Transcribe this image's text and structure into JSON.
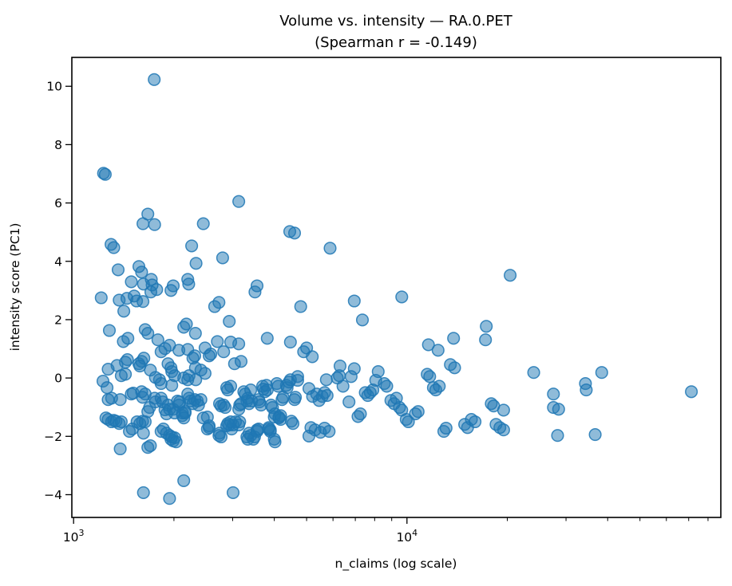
{
  "figure": {
    "title_line1": "Volume vs. intensity — RA.0.PET",
    "title_line2": "(Spearman r = -0.149)",
    "xlabel": "n_claims (log scale)",
    "ylabel": "intensity score (PC1)"
  },
  "style": {
    "marker_color": "#1f77b4",
    "marker_fill_opacity": 0.5,
    "marker_edge_opacity": 0.85,
    "spine_color": "#000000",
    "background": "#ffffff"
  },
  "chart_data": {
    "type": "scatter",
    "title": "Volume vs. intensity — RA.0.PET (Spearman r = -0.149)",
    "xlabel": "n_claims (log scale)",
    "ylabel": "intensity score (PC1)",
    "spearman_r": -0.149,
    "x_scale": "log",
    "grid": false,
    "legend": false,
    "xlim": [
      988,
      87400
    ],
    "ylim": [
      -4.78,
      10.99
    ],
    "marker_radius_px": 7.3,
    "x_major_ticks": [
      {
        "value": 1000,
        "mantissa": "10",
        "exponent": "3"
      },
      {
        "value": 10000,
        "mantissa": "10",
        "exponent": "4"
      }
    ],
    "x_minor_ticks": [
      2000,
      3000,
      4000,
      5000,
      6000,
      7000,
      8000,
      9000,
      20000,
      30000,
      40000,
      50000,
      60000,
      70000,
      80000
    ],
    "y_ticks": [
      {
        "value": -4,
        "label": "−4"
      },
      {
        "value": -2,
        "label": "−2"
      },
      {
        "value": 0,
        "label": "0"
      },
      {
        "value": 2,
        "label": "2"
      },
      {
        "value": 4,
        "label": "4"
      },
      {
        "value": 6,
        "label": "6"
      },
      {
        "value": 8,
        "label": "8"
      },
      {
        "value": 10,
        "label": "10"
      }
    ],
    "points": [
      [
        1745,
        10.23
      ],
      [
        1230,
        7.02
      ],
      [
        1245,
        6.98
      ],
      [
        3130,
        6.05
      ],
      [
        1670,
        5.62
      ],
      [
        1615,
        5.29
      ],
      [
        1750,
        5.26
      ],
      [
        2450,
        5.29
      ],
      [
        4450,
        5.02
      ],
      [
        4600,
        4.97
      ],
      [
        1295,
        4.58
      ],
      [
        1320,
        4.47
      ],
      [
        2260,
        4.53
      ],
      [
        5880,
        4.45
      ],
      [
        2800,
        4.12
      ],
      [
        2330,
        3.93
      ],
      [
        1360,
        3.71
      ],
      [
        1570,
        3.82
      ],
      [
        1600,
        3.63
      ],
      [
        1710,
        3.38
      ],
      [
        1720,
        3.19
      ],
      [
        1490,
        3.3
      ],
      [
        1620,
        3.22
      ],
      [
        1990,
        3.16
      ],
      [
        2200,
        3.38
      ],
      [
        2215,
        3.22
      ],
      [
        3550,
        3.16
      ],
      [
        20400,
        3.52
      ],
      [
        1210,
        2.75
      ],
      [
        1370,
        2.67
      ],
      [
        1445,
        2.73
      ],
      [
        1520,
        2.81
      ],
      [
        1545,
        2.64
      ],
      [
        1615,
        2.62
      ],
      [
        1705,
        2.95
      ],
      [
        1775,
        3.03
      ],
      [
        1960,
        3.0
      ],
      [
        1415,
        2.29
      ],
      [
        1280,
        1.63
      ],
      [
        1640,
        1.66
      ],
      [
        1670,
        1.53
      ],
      [
        1455,
        1.36
      ],
      [
        1410,
        1.25
      ],
      [
        1790,
        1.31
      ],
      [
        1940,
        1.12
      ],
      [
        1830,
        0.9
      ],
      [
        1880,
        1.01
      ],
      [
        2070,
        0.95
      ],
      [
        2200,
        0.98
      ],
      [
        2140,
        1.74
      ],
      [
        2180,
        1.85
      ],
      [
        2320,
        1.53
      ],
      [
        2480,
        1.03
      ],
      [
        2550,
        0.76
      ],
      [
        2580,
        0.82
      ],
      [
        2700,
        1.25
      ],
      [
        2730,
        2.59
      ],
      [
        2650,
        2.45
      ],
      [
        2930,
        1.94
      ],
      [
        2960,
        1.23
      ],
      [
        3130,
        1.17
      ],
      [
        2820,
        0.9
      ],
      [
        3040,
        0.49
      ],
      [
        3180,
        0.57
      ],
      [
        3500,
        2.95
      ],
      [
        3810,
        1.36
      ],
      [
        4470,
        1.23
      ],
      [
        1350,
        0.43
      ],
      [
        1430,
        0.54
      ],
      [
        1450,
        0.63
      ],
      [
        1570,
        0.49
      ],
      [
        1600,
        0.57
      ],
      [
        1625,
        0.68
      ],
      [
        1580,
        0.41
      ],
      [
        1700,
        0.27
      ],
      [
        1760,
        0.02
      ],
      [
        1810,
        -0.06
      ],
      [
        1830,
        -0.19
      ],
      [
        1920,
        0.49
      ],
      [
        1960,
        0.35
      ],
      [
        1970,
        0.22
      ],
      [
        2010,
        0.08
      ],
      [
        2140,
        0.0
      ],
      [
        2200,
        -0.06
      ],
      [
        2220,
        0.08
      ],
      [
        2280,
        0.68
      ],
      [
        2310,
        0.76
      ],
      [
        2320,
        0.35
      ],
      [
        2410,
        0.27
      ],
      [
        2480,
        0.16
      ],
      [
        2325,
        -0.06
      ],
      [
        1270,
        0.3
      ],
      [
        1225,
        -0.11
      ],
      [
        1260,
        -0.33
      ],
      [
        1390,
        0.08
      ],
      [
        1430,
        0.13
      ],
      [
        1380,
        -0.74
      ],
      [
        1300,
        -0.69
      ],
      [
        1270,
        -0.74
      ],
      [
        1490,
        -0.55
      ],
      [
        1510,
        -0.52
      ],
      [
        1600,
        -0.47
      ],
      [
        1610,
        -0.66
      ],
      [
        1640,
        -0.55
      ],
      [
        1670,
        -1.15
      ],
      [
        1690,
        -1.01
      ],
      [
        1750,
        -0.69
      ],
      [
        1760,
        -0.82
      ],
      [
        1830,
        -0.69
      ],
      [
        1850,
        -0.82
      ],
      [
        1880,
        -1.09
      ],
      [
        1900,
        -1.23
      ],
      [
        1920,
        -0.93
      ],
      [
        1940,
        -1.07
      ],
      [
        1970,
        -0.25
      ],
      [
        1990,
        -1.07
      ],
      [
        2010,
        -1.2
      ],
      [
        2050,
        -0.79
      ],
      [
        2070,
        -0.93
      ],
      [
        2080,
        -0.82
      ],
      [
        2120,
        -1.2
      ],
      [
        2160,
        -1.15
      ],
      [
        2200,
        -0.55
      ],
      [
        2220,
        -0.69
      ],
      [
        2240,
        -0.79
      ],
      [
        2280,
        -0.88
      ],
      [
        2310,
        -0.74
      ],
      [
        2350,
        -0.79
      ],
      [
        2370,
        -0.93
      ],
      [
        2410,
        -0.74
      ],
      [
        2450,
        -1.37
      ],
      [
        2520,
        -1.34
      ],
      [
        2550,
        -1.7
      ],
      [
        2740,
        -0.88
      ],
      [
        2770,
        -0.96
      ],
      [
        2820,
        -0.93
      ],
      [
        2850,
        -1.01
      ],
      [
        2880,
        -0.33
      ],
      [
        2900,
        -0.41
      ],
      [
        2960,
        -0.28
      ],
      [
        2980,
        -1.75
      ],
      [
        3010,
        -1.61
      ],
      [
        3060,
        -1.5
      ],
      [
        3130,
        -1.07
      ],
      [
        3150,
        -0.93
      ],
      [
        3180,
        -0.88
      ],
      [
        3240,
        -0.47
      ],
      [
        3270,
        -0.55
      ],
      [
        3310,
        -0.79
      ],
      [
        3330,
        -0.69
      ],
      [
        3360,
        -0.88
      ],
      [
        3400,
        -0.41
      ],
      [
        3420,
        -0.79
      ],
      [
        3460,
        -2.1
      ],
      [
        3490,
        -2.02
      ],
      [
        3550,
        -1.78
      ],
      [
        3590,
        -0.74
      ],
      [
        3610,
        -0.82
      ],
      [
        3650,
        -0.93
      ],
      [
        3690,
        -0.28
      ],
      [
        3710,
        -0.38
      ],
      [
        3750,
        -0.47
      ],
      [
        3790,
        -0.25
      ],
      [
        3810,
        -0.41
      ],
      [
        3850,
        -1.7
      ],
      [
        3890,
        -1.78
      ],
      [
        3910,
        -0.93
      ],
      [
        3950,
        -1.01
      ],
      [
        4000,
        -1.34
      ],
      [
        4020,
        -1.23
      ],
      [
        4070,
        -0.19
      ],
      [
        4110,
        -0.28
      ],
      [
        4130,
        -1.34
      ],
      [
        4180,
        -1.42
      ],
      [
        4220,
        -0.74
      ],
      [
        4250,
        -0.66
      ],
      [
        4350,
        -0.25
      ],
      [
        4370,
        -0.33
      ],
      [
        4430,
        -0.14
      ],
      [
        4470,
        -0.06
      ],
      [
        4500,
        -1.48
      ],
      [
        4550,
        -1.56
      ],
      [
        4600,
        -0.74
      ],
      [
        4630,
        -0.66
      ],
      [
        1250,
        -1.37
      ],
      [
        1270,
        -1.42
      ],
      [
        1300,
        -1.5
      ],
      [
        1320,
        -1.45
      ],
      [
        1340,
        -1.48
      ],
      [
        1370,
        -1.56
      ],
      [
        1390,
        -1.5
      ],
      [
        1470,
        -1.83
      ],
      [
        1500,
        -1.75
      ],
      [
        1550,
        -1.5
      ],
      [
        1580,
        -1.56
      ],
      [
        1610,
        -1.48
      ],
      [
        1640,
        -1.5
      ],
      [
        1670,
        -2.38
      ],
      [
        1700,
        -2.32
      ],
      [
        1830,
        -1.83
      ],
      [
        1860,
        -1.75
      ],
      [
        1900,
        -1.89
      ],
      [
        1940,
        -1.97
      ],
      [
        1960,
        -2.1
      ],
      [
        1970,
        -2.02
      ],
      [
        1990,
        -2.16
      ],
      [
        2010,
        -2.05
      ],
      [
        2030,
        -2.19
      ],
      [
        1380,
        -2.43
      ],
      [
        1620,
        -1.89
      ],
      [
        2120,
        -1.29
      ],
      [
        2140,
        -1.37
      ],
      [
        2160,
        -1.2
      ],
      [
        2520,
        -1.75
      ],
      [
        2550,
        -1.64
      ],
      [
        2730,
        -1.97
      ],
      [
        2740,
        -1.89
      ],
      [
        2770,
        -2.02
      ],
      [
        2880,
        -1.64
      ],
      [
        2900,
        -1.56
      ],
      [
        2930,
        -1.61
      ],
      [
        2960,
        -1.5
      ],
      [
        3130,
        -1.61
      ],
      [
        3150,
        -1.5
      ],
      [
        3310,
        -2.02
      ],
      [
        3330,
        -2.1
      ],
      [
        3360,
        -1.89
      ],
      [
        3400,
        -1.97
      ],
      [
        3550,
        -1.83
      ],
      [
        3590,
        -1.75
      ],
      [
        3850,
        -1.75
      ],
      [
        3890,
        -1.83
      ],
      [
        4000,
        -2.1
      ],
      [
        4020,
        -2.19
      ],
      [
        4130,
        -1.37
      ],
      [
        4180,
        -1.29
      ],
      [
        2140,
        -3.52
      ],
      [
        1620,
        -3.93
      ],
      [
        1940,
        -4.13
      ],
      [
        3010,
        -3.93
      ],
      [
        4800,
        2.45
      ],
      [
        6950,
        2.64
      ],
      [
        9650,
        2.78
      ],
      [
        7350,
        1.99
      ],
      [
        17300,
        1.77
      ],
      [
        17200,
        1.31
      ],
      [
        13800,
        1.36
      ],
      [
        11600,
        1.14
      ],
      [
        12400,
        0.95
      ],
      [
        5000,
        1.03
      ],
      [
        4900,
        0.9
      ],
      [
        5200,
        0.73
      ],
      [
        4700,
        0.05
      ],
      [
        4700,
        -0.08
      ],
      [
        5080,
        -0.36
      ],
      [
        5210,
        -0.63
      ],
      [
        5360,
        -0.55
      ],
      [
        5450,
        -0.77
      ],
      [
        5570,
        -0.63
      ],
      [
        5730,
        -0.06
      ],
      [
        5660,
        -0.5
      ],
      [
        5760,
        -0.6
      ],
      [
        5150,
        -1.7
      ],
      [
        5300,
        -1.78
      ],
      [
        5500,
        -1.86
      ],
      [
        5660,
        -1.72
      ],
      [
        5840,
        -1.83
      ],
      [
        5080,
        -1.99
      ],
      [
        6300,
        0.41
      ],
      [
        6270,
        0.08
      ],
      [
        6430,
        -0.28
      ],
      [
        6700,
        -0.82
      ],
      [
        6950,
        0.32
      ],
      [
        6800,
        0.05
      ],
      [
        6180,
        0.0
      ],
      [
        7250,
        -1.23
      ],
      [
        7130,
        -1.32
      ],
      [
        7500,
        -0.5
      ],
      [
        7630,
        -0.6
      ],
      [
        7760,
        -0.5
      ],
      [
        7900,
        -0.41
      ],
      [
        8060,
        -0.08
      ],
      [
        8200,
        0.22
      ],
      [
        8550,
        -0.19
      ],
      [
        8700,
        -0.28
      ],
      [
        8950,
        -0.77
      ],
      [
        9150,
        -0.88
      ],
      [
        9300,
        -0.69
      ],
      [
        9500,
        -1.01
      ],
      [
        9650,
        -1.1
      ],
      [
        9950,
        -1.42
      ],
      [
        10100,
        -1.5
      ],
      [
        10600,
        -1.23
      ],
      [
        10800,
        -1.15
      ],
      [
        11500,
        0.13
      ],
      [
        11700,
        0.05
      ],
      [
        12000,
        -0.33
      ],
      [
        12200,
        -0.41
      ],
      [
        12500,
        -0.28
      ],
      [
        12900,
        -1.83
      ],
      [
        13100,
        -1.72
      ],
      [
        13500,
        0.46
      ],
      [
        13900,
        0.35
      ],
      [
        14900,
        -1.59
      ],
      [
        15200,
        -1.7
      ],
      [
        15600,
        -1.42
      ],
      [
        16000,
        -1.5
      ],
      [
        17900,
        -0.88
      ],
      [
        18200,
        -0.96
      ],
      [
        18500,
        -1.59
      ],
      [
        19000,
        -1.7
      ],
      [
        24000,
        0.19
      ],
      [
        38400,
        0.19
      ],
      [
        34300,
        -0.19
      ],
      [
        34500,
        -0.41
      ],
      [
        27500,
        -0.55
      ],
      [
        19500,
        -1.1
      ],
      [
        19500,
        -1.78
      ],
      [
        27500,
        -1.01
      ],
      [
        28500,
        -1.07
      ],
      [
        28300,
        -1.97
      ],
      [
        36700,
        -1.94
      ],
      [
        71300,
        -0.47
      ]
    ]
  }
}
